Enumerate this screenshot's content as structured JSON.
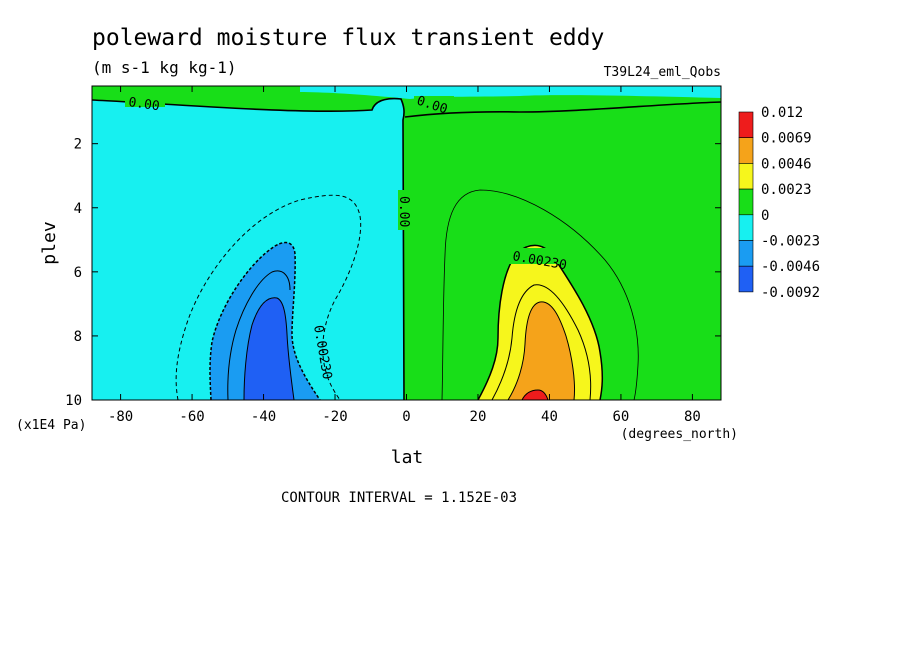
{
  "chart_data": {
    "type": "contour",
    "title": "poleward moisture flux transient eddy",
    "units": "(m s-1 kg kg-1)",
    "experiment": "T39L24_eml_Qobs",
    "xlabel": "lat",
    "x_units": "(degrees_north)",
    "ylabel": "plev",
    "y_units": "(x1E4 Pa)",
    "xlim": [
      -88,
      88
    ],
    "ylim": [
      10,
      0.2
    ],
    "x_ticks": [
      -80,
      -60,
      -40,
      -20,
      0,
      20,
      40,
      60,
      80
    ],
    "y_ticks": [
      2,
      4,
      6,
      8,
      10
    ],
    "contour_interval_text": "CONTOUR INTERVAL = 1.152E-03",
    "colorbar": {
      "labels": [
        "0.012",
        "0.0069",
        "0.0046",
        "0.0023",
        "0",
        "-0.0023",
        "-0.0046",
        "-0.0092"
      ],
      "colors": [
        "#ee1c1c",
        "#f5a31a",
        "#f6f61c",
        "#18de18",
        "#17f0f0",
        "#1a9cf2",
        "#1f60f4"
      ]
    },
    "contour_labels": [
      {
        "text": "0.00",
        "lat": -72,
        "plev": 0.85
      },
      {
        "text": "0.00",
        "lat": 8,
        "plev": 0.9
      },
      {
        "text": "0.00",
        "lat": 1,
        "plev": 4.0
      },
      {
        "text": "0.00230",
        "lat": 38,
        "plev": 5.8
      },
      {
        "text": "0.00230",
        "lat": -24,
        "plev": 9.0
      }
    ],
    "features": [
      {
        "name": "southern-hemisphere-minimum",
        "lat": -38,
        "plev": 9.5,
        "min_below": -0.0069
      },
      {
        "name": "northern-hemisphere-maximum",
        "lat": 36,
        "plev": 9.8,
        "max_above": 0.0069
      }
    ]
  }
}
